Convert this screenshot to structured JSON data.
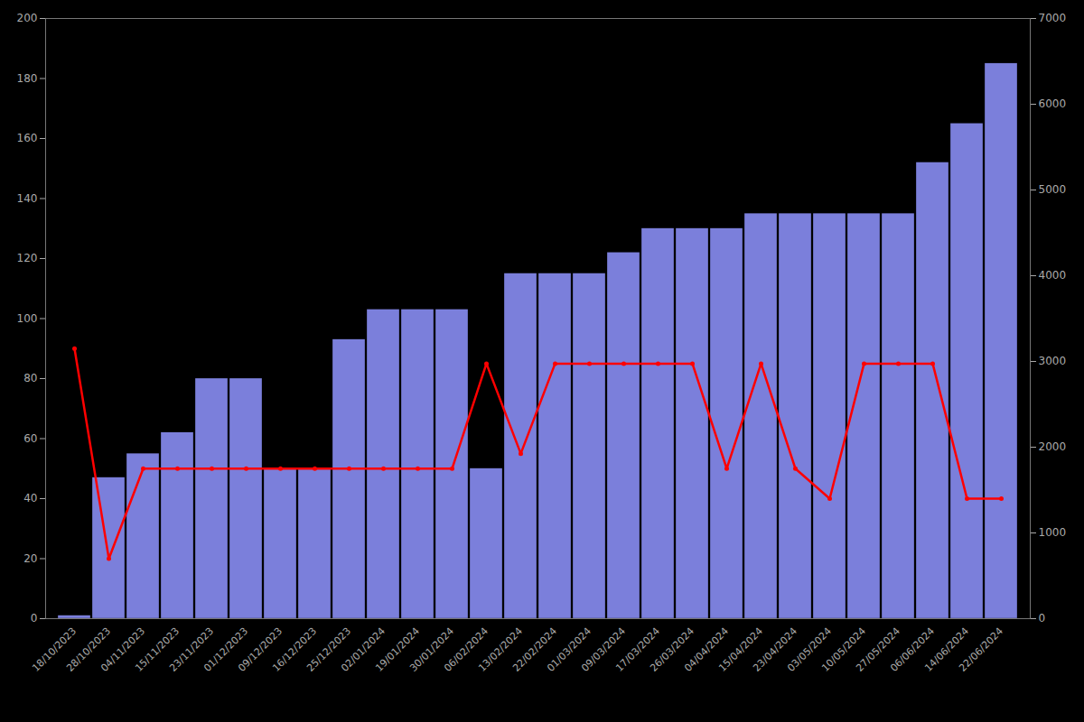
{
  "chart_data": {
    "type": "bar",
    "categories": [
      "18/10/2023",
      "28/10/2023",
      "04/11/2023",
      "15/11/2023",
      "23/11/2023",
      "01/12/2023",
      "09/12/2023",
      "16/12/2023",
      "25/12/2023",
      "02/01/2024",
      "19/01/2024",
      "30/01/2024",
      "06/02/2024",
      "13/02/2024",
      "22/02/2024",
      "01/03/2024",
      "09/03/2024",
      "17/03/2024",
      "26/03/2024",
      "04/04/2024",
      "15/04/2024",
      "23/04/2024",
      "03/05/2024",
      "10/05/2024",
      "27/05/2024",
      "06/06/2024",
      "14/06/2024",
      "22/06/2024"
    ],
    "series": [
      {
        "type": "bar",
        "color": "#7B7FDB",
        "values": [
          1,
          47,
          55,
          62,
          80,
          80,
          50,
          50,
          93,
          103,
          103,
          103,
          50,
          115,
          115,
          115,
          122,
          130,
          130,
          130,
          135,
          135,
          135,
          135,
          135,
          152,
          165,
          185
        ]
      },
      {
        "type": "line",
        "color": "#FF0000",
        "marker": "circle",
        "values": [
          90,
          20,
          50,
          50,
          50,
          50,
          50,
          50,
          50,
          50,
          50,
          50,
          85,
          55,
          85,
          85,
          85,
          85,
          85,
          50,
          85,
          50,
          40,
          85,
          85,
          85,
          40,
          40
        ]
      }
    ],
    "ylim": [
      0,
      200
    ],
    "yticks": [
      0,
      20,
      40,
      60,
      80,
      100,
      120,
      140,
      160,
      180,
      200
    ],
    "y2lim": [
      0,
      7000
    ],
    "y2ticks": [
      0,
      1000,
      2000,
      3000,
      4000,
      5000,
      6000,
      7000
    ],
    "grid": false
  }
}
